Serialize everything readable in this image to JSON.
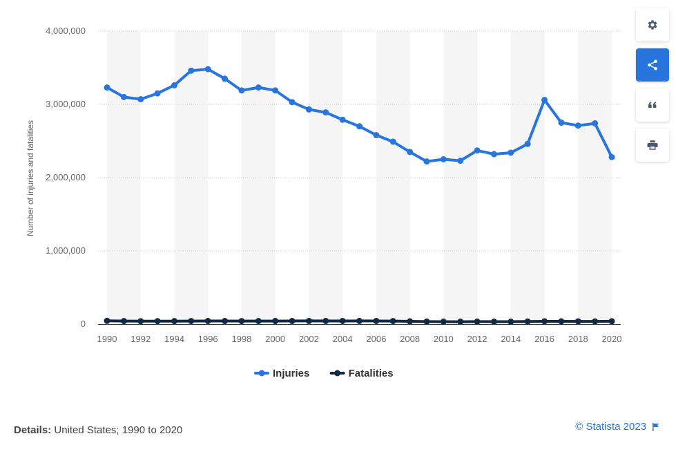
{
  "chart_data": {
    "type": "line",
    "ylabel": "Number of injuries and fatalities",
    "ylim": [
      0,
      4000000
    ],
    "yticks": [
      "0",
      "1,000,000",
      "2,000,000",
      "3,000,000",
      "4,000,000"
    ],
    "x": [
      1990,
      1991,
      1992,
      1993,
      1994,
      1995,
      1996,
      1997,
      1998,
      1999,
      2000,
      2001,
      2002,
      2003,
      2004,
      2005,
      2006,
      2007,
      2008,
      2009,
      2010,
      2011,
      2012,
      2013,
      2014,
      2015,
      2016,
      2017,
      2018,
      2019,
      2020
    ],
    "xtick_labels": [
      "1990",
      "1992",
      "1994",
      "1996",
      "1998",
      "2000",
      "2002",
      "2004",
      "2006",
      "2008",
      "2010",
      "2012",
      "2014",
      "2016",
      "2018",
      "2020"
    ],
    "series": [
      {
        "name": "Injuries",
        "color": "#2876dd",
        "values": [
          3230000,
          3100000,
          3070000,
          3150000,
          3260000,
          3460000,
          3480000,
          3350000,
          3190000,
          3230000,
          3190000,
          3030000,
          2930000,
          2890000,
          2790000,
          2700000,
          2580000,
          2490000,
          2350000,
          2220000,
          2250000,
          2230000,
          2370000,
          2320000,
          2340000,
          2460000,
          3060000,
          2750000,
          2710000,
          2740000,
          2280000
        ]
      },
      {
        "name": "Fatalities",
        "color": "#0e2a47",
        "values": [
          44599,
          41508,
          39250,
          40150,
          40716,
          41817,
          42065,
          42013,
          41501,
          41717,
          41945,
          42196,
          43005,
          42884,
          42836,
          43510,
          42708,
          41259,
          37423,
          33883,
          32999,
          32479,
          33782,
          32894,
          32744,
          35484,
          37806,
          37473,
          36835,
          36355,
          38824
        ]
      }
    ],
    "legend_position": "bottom-center",
    "grid": true
  },
  "toolbar": {
    "buttons": [
      {
        "name": "settings",
        "icon": "gear-icon"
      },
      {
        "name": "share",
        "icon": "share-icon",
        "active": true
      },
      {
        "name": "cite",
        "icon": "quote-icon"
      },
      {
        "name": "print",
        "icon": "printer-icon"
      }
    ]
  },
  "footer": {
    "details_label": "Details:",
    "details_text": "United States; 1990 to 2020",
    "copyright": "© Statista 2023"
  }
}
